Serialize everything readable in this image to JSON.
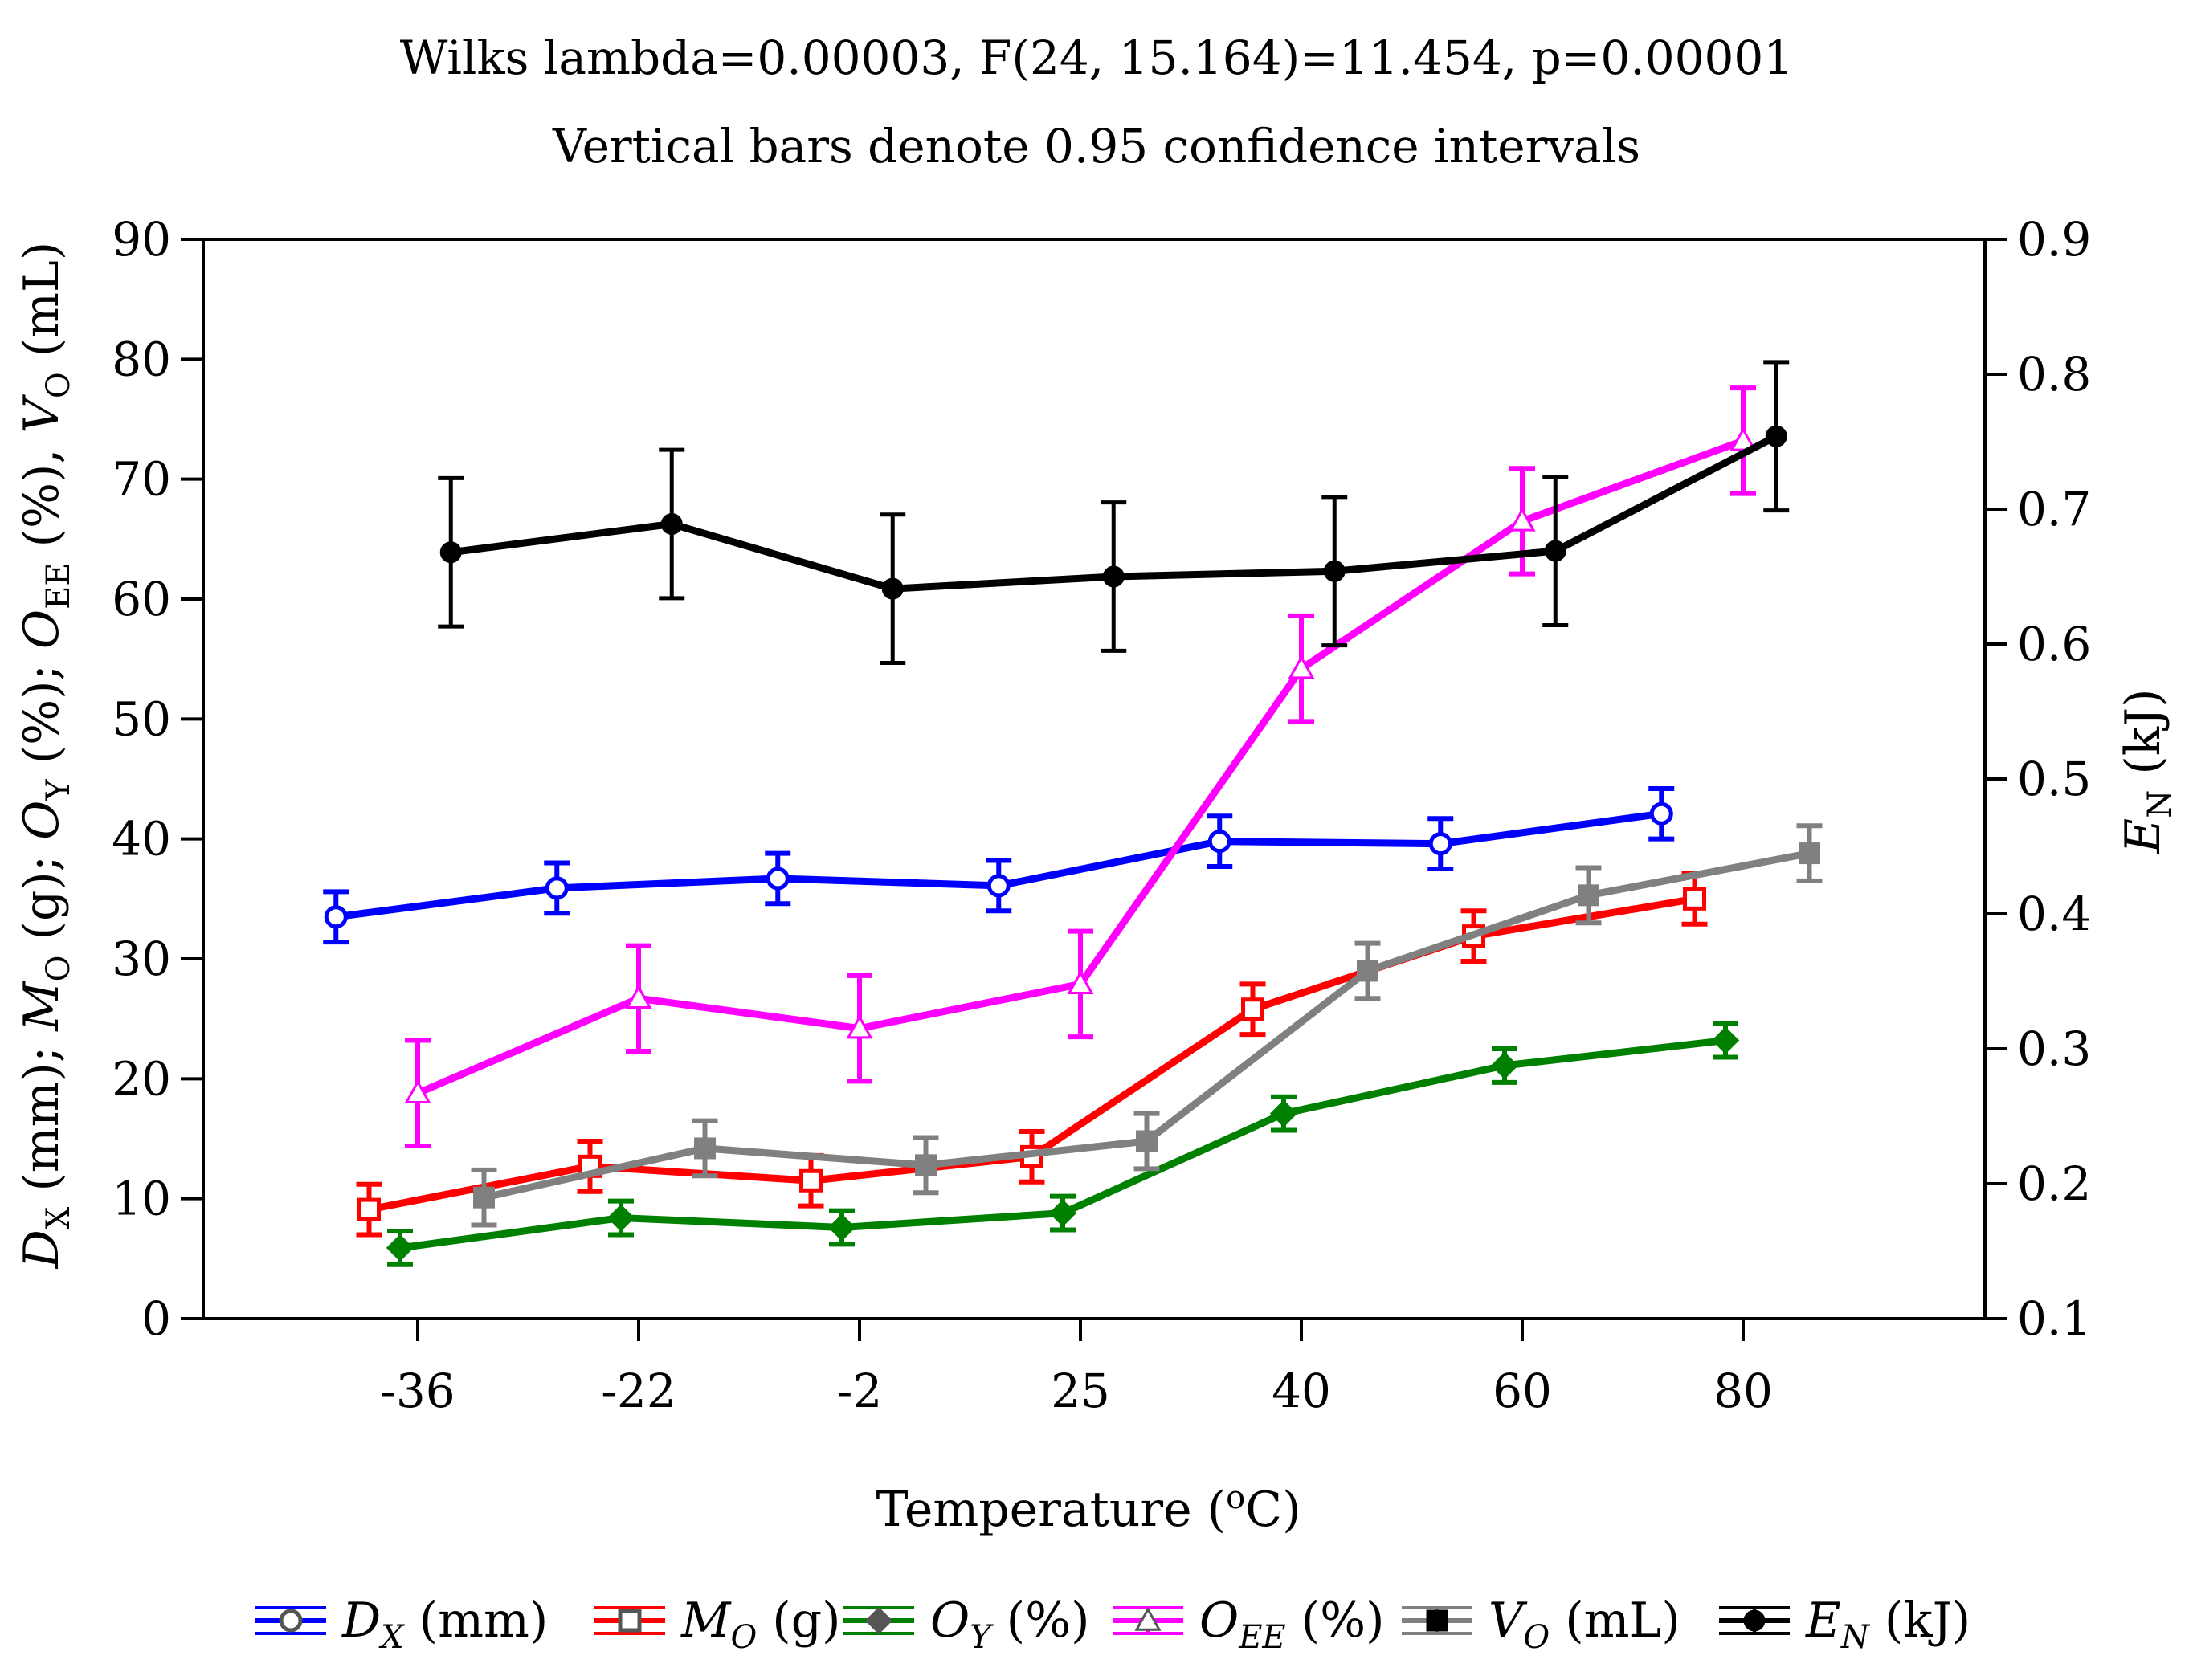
{
  "chart_data": {
    "type": "line",
    "title": "Wilks lambda=0.00003, F(24, 15.164)=11.454, p=0.00001",
    "subtitle": "Vertical bars denote 0.95 confidence intervals",
    "xlabel_parts": [
      "Temperature (",
      "o",
      "C)"
    ],
    "ylabel_left": "D_X (mm); M_O (g); O_Y (%); O_EE (%), V_O (mL)",
    "ylabel_right": "E_N (kJ)",
    "ylim_left": [
      0,
      90
    ],
    "ylim_right": [
      0.1,
      0.9
    ],
    "left_ticks": [
      "0",
      "10",
      "20",
      "30",
      "40",
      "50",
      "60",
      "70",
      "80",
      "90"
    ],
    "right_ticks": [
      "0.1",
      "0.2",
      "0.3",
      "0.4",
      "0.5",
      "0.6",
      "0.7",
      "0.8",
      "0.9"
    ],
    "categories": [
      "-36",
      "-22",
      "-2",
      "25",
      "40",
      "60",
      "80"
    ],
    "grid": false,
    "legend_position": "bottom",
    "series": [
      {
        "key": "DX",
        "legend_main": "D",
        "legend_sub": "X",
        "legend_unit": " (mm)",
        "color": "#0000ff",
        "marker": "circle",
        "axis": "left",
        "offset": -0.37,
        "values": [
          33.5,
          35.9,
          36.7,
          36.1,
          39.8,
          39.6,
          42.1
        ],
        "ci": [
          2.1,
          2.1,
          2.1,
          2.1,
          2.1,
          2.1,
          2.1
        ]
      },
      {
        "key": "MO",
        "legend_main": "M",
        "legend_sub": "O",
        "legend_unit": " (g)",
        "color": "#ff0000",
        "marker": "square",
        "axis": "left",
        "offset": -0.22,
        "values": [
          9.1,
          12.7,
          11.5,
          13.5,
          25.8,
          31.9,
          35.0
        ],
        "ci": [
          2.1,
          2.1,
          2.1,
          2.1,
          2.1,
          2.1,
          2.1
        ]
      },
      {
        "key": "OY",
        "legend_main": "O",
        "legend_sub": "Y",
        "legend_unit": " (%)",
        "color": "#008000",
        "marker": "diamond",
        "axis": "left",
        "offset": -0.08,
        "values": [
          5.9,
          8.4,
          7.6,
          8.8,
          17.1,
          21.1,
          23.2
        ],
        "ci": [
          1.4,
          1.4,
          1.4,
          1.4,
          1.4,
          1.4,
          1.4
        ]
      },
      {
        "key": "OEE",
        "legend_main": "O",
        "legend_sub": "EE",
        "legend_unit": " (%)",
        "color": "#ff00ff",
        "marker": "triangle",
        "axis": "left",
        "offset": 0.0,
        "values": [
          18.8,
          26.7,
          24.2,
          27.9,
          54.2,
          66.5,
          73.2
        ],
        "ci": [
          4.4,
          4.4,
          4.4,
          4.4,
          4.4,
          4.4,
          4.4
        ]
      },
      {
        "key": "VO",
        "legend_main": "V",
        "legend_sub": "O",
        "legend_unit": " (mL)",
        "color": "#808080",
        "marker": "filled-square",
        "axis": "left",
        "offset": 0.3,
        "values": [
          10.1,
          14.2,
          12.8,
          14.8,
          29.0,
          35.3,
          38.8
        ],
        "ci": [
          2.3,
          2.3,
          2.3,
          2.3,
          2.3,
          2.3,
          2.3
        ]
      },
      {
        "key": "EN",
        "legend_main": "E",
        "legend_sub": "N",
        "legend_unit": " (kJ)",
        "color": "#000000",
        "marker": "filled-circle",
        "axis": "right",
        "offset": 0.15,
        "values": [
          0.668,
          0.689,
          0.641,
          0.65,
          0.654,
          0.669,
          0.754
        ],
        "ci": [
          0.055,
          0.055,
          0.055,
          0.055,
          0.055,
          0.055,
          0.055
        ]
      }
    ]
  }
}
